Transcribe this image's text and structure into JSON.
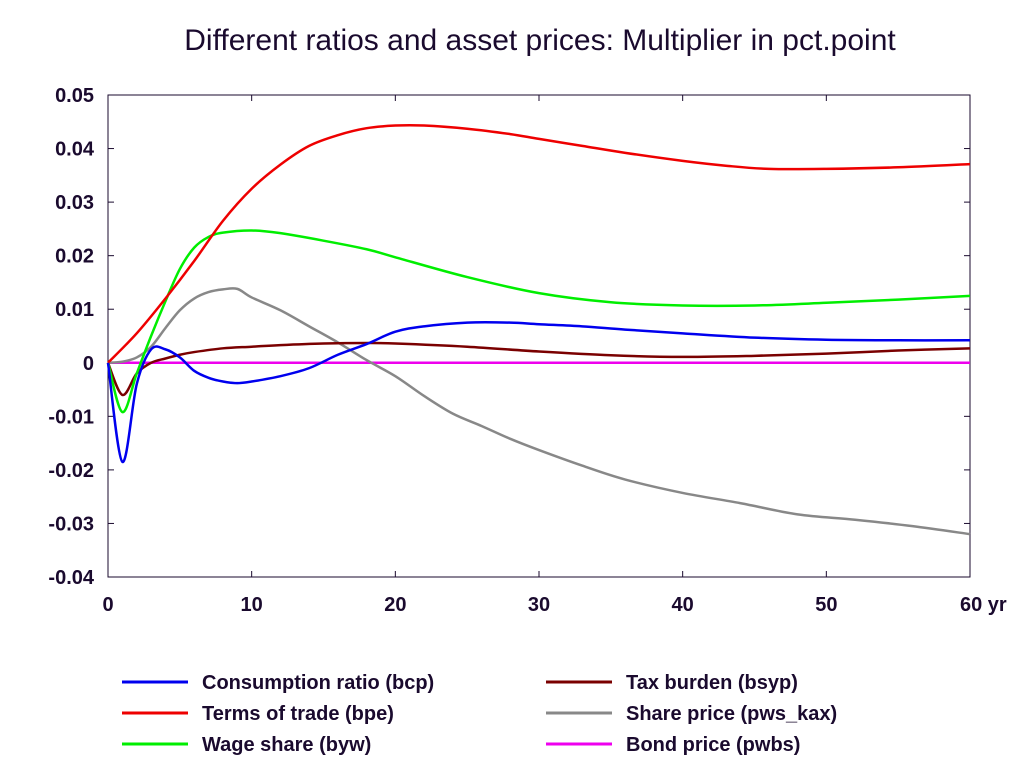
{
  "chart_data": {
    "type": "line",
    "title": "Different ratios and asset prices: Multiplier in pct.point",
    "xlabel": "",
    "ylabel": "",
    "x_tick_labels": [
      "0",
      "10",
      "20",
      "30",
      "40",
      "50",
      "60 yr"
    ],
    "x_ticks": [
      0,
      10,
      20,
      30,
      40,
      50,
      60
    ],
    "xlim": [
      0,
      60
    ],
    "y_tick_labels": [
      "0.05",
      "0.04",
      "0.03",
      "0.02",
      "0.01",
      "0",
      "-0.01",
      "-0.02",
      "-0.03",
      "-0.04"
    ],
    "y_ticks": [
      0.05,
      0.04,
      0.03,
      0.02,
      0.01,
      0,
      -0.01,
      -0.02,
      -0.03,
      -0.04
    ],
    "ylim": [
      -0.04,
      0.05
    ],
    "grid": false,
    "legend_position": "bottom",
    "series": [
      {
        "name": "Consumption ratio (bcp)",
        "color": "#0000ee",
        "points": [
          [
            0,
            0
          ],
          [
            1,
            -0.0185
          ],
          [
            2,
            -0.004
          ],
          [
            3,
            0.0025
          ],
          [
            4,
            0.0025
          ],
          [
            5,
            0.001
          ],
          [
            6,
            -0.0015
          ],
          [
            7,
            -0.0028
          ],
          [
            8,
            -0.0035
          ],
          [
            9,
            -0.0038
          ],
          [
            10,
            -0.0035
          ],
          [
            12,
            -0.0025
          ],
          [
            14,
            -0.001
          ],
          [
            16,
            0.0015
          ],
          [
            18,
            0.0035
          ],
          [
            20,
            0.0058
          ],
          [
            22,
            0.0068
          ],
          [
            25,
            0.0075
          ],
          [
            28,
            0.0075
          ],
          [
            30,
            0.0072
          ],
          [
            33,
            0.0068
          ],
          [
            36,
            0.0062
          ],
          [
            40,
            0.0055
          ],
          [
            45,
            0.0047
          ],
          [
            50,
            0.0043
          ],
          [
            55,
            0.0042
          ],
          [
            60,
            0.0042
          ]
        ]
      },
      {
        "name": "Terms of trade (bpe)",
        "color": "#ee0000",
        "points": [
          [
            0,
            0
          ],
          [
            2,
            0.0055
          ],
          [
            4,
            0.012
          ],
          [
            6,
            0.019
          ],
          [
            8,
            0.0265
          ],
          [
            10,
            0.0325
          ],
          [
            12,
            0.037
          ],
          [
            14,
            0.0405
          ],
          [
            16,
            0.0425
          ],
          [
            18,
            0.0438
          ],
          [
            20,
            0.0443
          ],
          [
            22,
            0.0443
          ],
          [
            25,
            0.0437
          ],
          [
            28,
            0.0427
          ],
          [
            30,
            0.0418
          ],
          [
            33,
            0.0405
          ],
          [
            36,
            0.0392
          ],
          [
            40,
            0.0377
          ],
          [
            43,
            0.0368
          ],
          [
            46,
            0.0362
          ],
          [
            50,
            0.0362
          ],
          [
            55,
            0.0365
          ],
          [
            60,
            0.0371
          ]
        ]
      },
      {
        "name": "Wage share (byw)",
        "color": "#00ee00",
        "points": [
          [
            0,
            0
          ],
          [
            1,
            -0.0092
          ],
          [
            2,
            -0.002
          ],
          [
            3,
            0.005
          ],
          [
            4,
            0.0115
          ],
          [
            5,
            0.0175
          ],
          [
            6,
            0.0215
          ],
          [
            7,
            0.0235
          ],
          [
            8,
            0.0243
          ],
          [
            10,
            0.0247
          ],
          [
            12,
            0.0242
          ],
          [
            15,
            0.0228
          ],
          [
            18,
            0.0212
          ],
          [
            20,
            0.0197
          ],
          [
            25,
            0.016
          ],
          [
            30,
            0.013
          ],
          [
            35,
            0.0113
          ],
          [
            40,
            0.0107
          ],
          [
            45,
            0.0107
          ],
          [
            50,
            0.0112
          ],
          [
            55,
            0.0118
          ],
          [
            60,
            0.0125
          ]
        ]
      },
      {
        "name": "Tax burden (bsyp)",
        "color": "#7a0000",
        "points": [
          [
            0,
            0
          ],
          [
            1,
            -0.006
          ],
          [
            2,
            -0.002
          ],
          [
            3,
            0
          ],
          [
            4,
            0.0008
          ],
          [
            5,
            0.0015
          ],
          [
            6,
            0.002
          ],
          [
            8,
            0.0027
          ],
          [
            10,
            0.003
          ],
          [
            12,
            0.0033
          ],
          [
            15,
            0.0036
          ],
          [
            18,
            0.0037
          ],
          [
            20,
            0.0036
          ],
          [
            25,
            0.003
          ],
          [
            30,
            0.0021
          ],
          [
            35,
            0.0014
          ],
          [
            40,
            0.0011
          ],
          [
            45,
            0.0013
          ],
          [
            50,
            0.0017
          ],
          [
            55,
            0.0023
          ],
          [
            60,
            0.0027
          ]
        ]
      },
      {
        "name": "Share price (pws_kax)",
        "color": "#888888",
        "points": [
          [
            0,
            0
          ],
          [
            1,
            0.0002
          ],
          [
            2,
            0.001
          ],
          [
            3,
            0.003
          ],
          [
            4,
            0.0065
          ],
          [
            5,
            0.0098
          ],
          [
            6,
            0.012
          ],
          [
            7,
            0.0132
          ],
          [
            8,
            0.0137
          ],
          [
            9,
            0.0138
          ],
          [
            10,
            0.0122
          ],
          [
            12,
            0.0098
          ],
          [
            14,
            0.0068
          ],
          [
            16,
            0.0038
          ],
          [
            18,
            0.0005
          ],
          [
            20,
            -0.0025
          ],
          [
            22,
            -0.0062
          ],
          [
            24,
            -0.0095
          ],
          [
            26,
            -0.0118
          ],
          [
            28,
            -0.0142
          ],
          [
            30,
            -0.0163
          ],
          [
            33,
            -0.0192
          ],
          [
            36,
            -0.0218
          ],
          [
            40,
            -0.0243
          ],
          [
            44,
            -0.0262
          ],
          [
            48,
            -0.0283
          ],
          [
            52,
            -0.0293
          ],
          [
            56,
            -0.0305
          ],
          [
            60,
            -0.032
          ]
        ]
      },
      {
        "name": "Bond price (pwbs)",
        "color": "#ee00ee",
        "points": [
          [
            0,
            0
          ],
          [
            60,
            0
          ]
        ]
      }
    ]
  }
}
